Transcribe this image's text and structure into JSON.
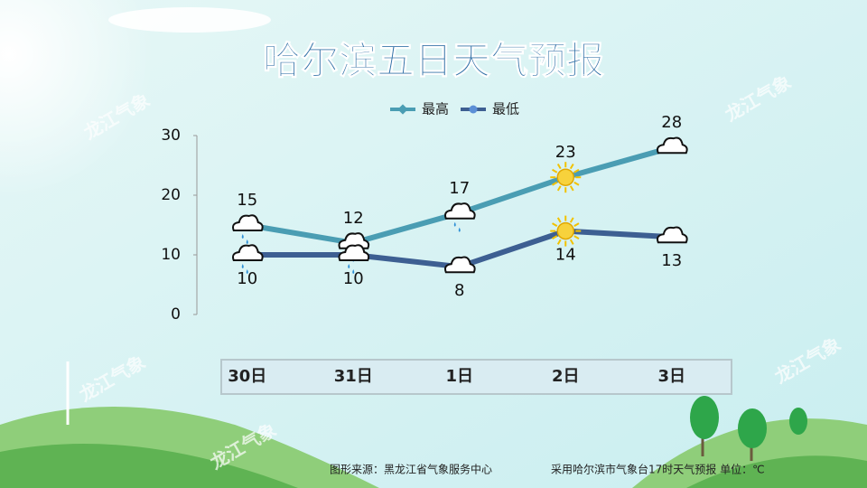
{
  "chart_data": {
    "type": "line",
    "title": "哈尔滨五日天气预报",
    "watermark": "龙江气象",
    "categories": [
      "30日",
      "31日",
      "1日",
      "2日",
      "3日"
    ],
    "series": [
      {
        "name": "最高",
        "color": "#4a9db3",
        "values": [
          15,
          12,
          17,
          23,
          28
        ]
      },
      {
        "name": "最低",
        "color": "#3d5f92",
        "values": [
          10,
          10,
          8,
          14,
          13
        ]
      }
    ],
    "ylim": [
      0,
      30
    ],
    "yticks": [
      0,
      10,
      20,
      30
    ],
    "source": "图形来源：黑龙江省气象服务中心",
    "note": "采用哈尔滨市气象台17时天气预报 单位：℃"
  }
}
